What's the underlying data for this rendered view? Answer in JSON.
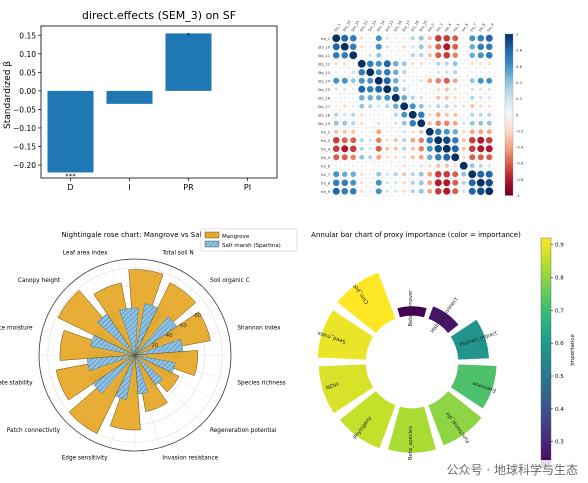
{
  "watermark": "公众号 · 地球科学与生态",
  "chart_data": [
    {
      "type": "bar",
      "title": "direct.effects (SEM_3) on SF",
      "ylabel": "Standardized β",
      "categories": [
        "D",
        "I",
        "PR",
        "PI"
      ],
      "values": [
        -0.22,
        -0.035,
        0.155,
        0.0
      ],
      "significance": [
        "***",
        "",
        "*",
        ""
      ],
      "ylim": [
        -0.235,
        0.175
      ],
      "yticks": [
        -0.2,
        -0.15,
        -0.1,
        -0.05,
        0.0,
        0.05,
        0.1,
        0.15
      ],
      "ytick_labels": [
        "−0.20",
        "−0.15",
        "−0.10",
        "−0.05",
        "0.00",
        "0.05",
        "0.10",
        "0.15"
      ],
      "bar_color": "#1f77b4"
    },
    {
      "type": "heatmap",
      "title": "",
      "labels": [
        "fre_1",
        "Sto_10",
        "Sto_11",
        "Sto_12",
        "Sto_13",
        "Sto_14",
        "Sto_15",
        "Sto_16",
        "Sto_17",
        "Sto_18",
        "Sto_19",
        "fre_2",
        "fre_3",
        "fre_4",
        "fre_5",
        "fre_6",
        "fre_7",
        "fre_8",
        "fre_9"
      ],
      "column_labels": [
        "fre_1",
        "Sto_10",
        "Sto_11",
        "Sto_12",
        "Sto_13",
        "Sto_14",
        "Sto_15",
        "Sto_16",
        "Sto_17",
        "Sto_18",
        "Sto_19",
        "fre_2",
        "fre_3",
        "fre_4",
        "fre_5",
        "fre_6",
        "fre_7",
        "fre_8",
        "fre_9"
      ],
      "colorbar_ticks": [
        1,
        0.8,
        0.6,
        0.4,
        0.2,
        0,
        -0.2,
        -0.4,
        -0.6,
        -0.8,
        -1
      ],
      "colormap": "RdBu",
      "corr_matrix": [
        [
          1,
          0.8,
          0.7,
          -0.2,
          0.1,
          0.6,
          0.2,
          0.1,
          -0.1,
          0.3,
          0.4,
          -0.3,
          -0.7,
          -0.7,
          -0.6,
          0.1,
          0.6,
          0.7,
          0.8
        ],
        [
          0.8,
          1,
          0.7,
          -0.2,
          0.1,
          0.6,
          0.2,
          0.1,
          -0.2,
          0.2,
          0.4,
          -0.3,
          -0.6,
          -0.8,
          -0.6,
          0.1,
          0.5,
          0.7,
          0.7
        ],
        [
          0.7,
          0.7,
          1,
          -0.1,
          0.2,
          0.4,
          0.1,
          0.1,
          -0.1,
          0.3,
          0.3,
          -0.3,
          -0.6,
          -0.7,
          -0.5,
          0.1,
          0.5,
          0.6,
          0.7
        ],
        [
          -0.2,
          -0.2,
          -0.1,
          1,
          0.7,
          0.6,
          0.8,
          0.5,
          0.4,
          -0.2,
          -0.2,
          0.1,
          0.3,
          0.3,
          0.4,
          -0.1,
          -0.2,
          -0.2,
          -0.2
        ],
        [
          0.1,
          0.1,
          0.2,
          0.7,
          1,
          0.6,
          0.7,
          0.5,
          0.3,
          -0.1,
          0.0,
          0.1,
          0.2,
          0.2,
          0.3,
          0.0,
          0.1,
          0.1,
          0.1
        ],
        [
          0.6,
          0.6,
          0.4,
          0.6,
          0.6,
          1,
          0.8,
          0.5,
          0.2,
          0.1,
          0.2,
          -0.4,
          -0.5,
          -0.6,
          -0.4,
          0.1,
          0.4,
          0.6,
          0.6
        ],
        [
          0.2,
          0.2,
          0.1,
          0.8,
          0.7,
          0.8,
          1,
          0.6,
          0.3,
          0.0,
          0.1,
          -0.1,
          -0.2,
          -0.3,
          -0.2,
          0.0,
          0.2,
          0.2,
          0.2
        ],
        [
          0.1,
          0.1,
          0.1,
          0.5,
          0.5,
          0.5,
          0.6,
          1,
          0.5,
          0.3,
          0.2,
          -0.1,
          -0.3,
          -0.3,
          -0.2,
          0.1,
          0.3,
          0.2,
          0.2
        ],
        [
          -0.1,
          -0.2,
          -0.1,
          0.4,
          0.3,
          0.2,
          0.3,
          0.5,
          1,
          0.6,
          0.4,
          0.2,
          0.3,
          0.3,
          0.2,
          -0.2,
          -0.3,
          -0.2,
          -0.2
        ],
        [
          0.3,
          0.2,
          0.3,
          -0.2,
          -0.1,
          0.1,
          0.0,
          0.3,
          0.6,
          1,
          0.7,
          -0.2,
          -0.4,
          -0.3,
          -0.3,
          0.1,
          0.3,
          0.3,
          0.3
        ],
        [
          0.4,
          0.4,
          0.3,
          -0.2,
          0.0,
          0.2,
          0.1,
          0.2,
          0.4,
          0.7,
          1,
          -0.3,
          -0.5,
          -0.5,
          -0.4,
          0.2,
          0.4,
          0.4,
          0.4
        ],
        [
          -0.3,
          -0.3,
          -0.3,
          0.1,
          0.1,
          -0.4,
          -0.1,
          -0.1,
          0.2,
          -0.2,
          -0.3,
          1,
          0.7,
          0.6,
          0.5,
          -0.2,
          -0.4,
          -0.4,
          -0.4
        ],
        [
          -0.7,
          -0.6,
          -0.6,
          0.3,
          0.2,
          -0.5,
          -0.2,
          -0.3,
          0.3,
          -0.4,
          -0.5,
          0.7,
          1,
          0.9,
          0.7,
          -0.3,
          -0.7,
          -0.8,
          -0.7
        ],
        [
          -0.7,
          -0.8,
          -0.7,
          0.3,
          0.2,
          -0.6,
          -0.3,
          -0.3,
          0.3,
          -0.3,
          -0.5,
          0.6,
          0.9,
          1,
          0.8,
          -0.3,
          -0.7,
          -0.8,
          -0.8
        ],
        [
          -0.6,
          -0.6,
          -0.5,
          0.4,
          0.3,
          -0.4,
          -0.2,
          -0.2,
          0.2,
          -0.3,
          -0.4,
          0.5,
          0.7,
          0.8,
          1,
          -0.2,
          -0.6,
          -0.6,
          -0.6
        ],
        [
          0.1,
          0.1,
          0.1,
          -0.1,
          0.0,
          0.1,
          0.0,
          0.1,
          -0.2,
          0.1,
          0.2,
          -0.2,
          -0.3,
          -0.3,
          -0.2,
          1,
          0.4,
          0.3,
          0.2
        ],
        [
          0.6,
          0.5,
          0.5,
          -0.2,
          0.1,
          0.4,
          0.2,
          0.3,
          -0.3,
          0.3,
          0.4,
          -0.4,
          -0.7,
          -0.7,
          -0.6,
          0.4,
          1,
          0.8,
          0.8
        ],
        [
          0.7,
          0.7,
          0.6,
          -0.2,
          0.1,
          0.6,
          0.2,
          0.2,
          -0.2,
          0.3,
          0.4,
          -0.4,
          -0.8,
          -0.8,
          -0.6,
          0.3,
          0.8,
          1,
          0.9
        ],
        [
          0.8,
          0.7,
          0.7,
          -0.2,
          0.1,
          0.6,
          0.2,
          0.2,
          -0.2,
          0.3,
          0.4,
          -0.4,
          -0.7,
          -0.8,
          -0.6,
          0.2,
          0.8,
          0.9,
          1
        ]
      ]
    },
    {
      "type": "bar",
      "projection": "polar",
      "title": "Nightingale rose chart: Mangrove vs Salt marsh",
      "categories": [
        "Total soil N",
        "Soil organic C",
        "Shannon index",
        "Species richness",
        "Regeneration potential",
        "Invasion resistance",
        "Edge sensitivity",
        "Patch connectivity",
        "Substrate stability",
        "Surface moisture",
        "Canopy height",
        "Leaf area index"
      ],
      "series": [
        {
          "name": "Mangrove",
          "color": "#e6a92a",
          "values": [
            98,
            92,
            88,
            72,
            56,
            66,
            86,
            100,
            92,
            86,
            98,
            84
          ]
        },
        {
          "name": "Salt marsh (Spartina)",
          "color": "#8fc1e3",
          "values": [
            60,
            58,
            55,
            47,
            42,
            45,
            52,
            58,
            55,
            52,
            57,
            54
          ]
        }
      ],
      "rticks": [
        20,
        40,
        60,
        80
      ],
      "rlim": [
        0,
        110
      ],
      "legend_position": "top-right"
    },
    {
      "type": "bar",
      "projection": "polar",
      "title": "Annular bar chart of proxy importance (color = importance)",
      "categories": [
        "Beta_turnover",
        "Habitat_connect",
        "Human_impact",
        "Evenness",
        "Functional_div",
        "Beta_species",
        "Phylogeny",
        "NDVI",
        "Seed_mass",
        "Clim_pot"
      ],
      "values": [
        0.19,
        0.26,
        0.58,
        0.72,
        0.8,
        0.83,
        0.86,
        0.88,
        0.9,
        0.92
      ],
      "colormap": "viridis",
      "colorbar_label": "Importance",
      "colorbar_ticks": [
        0.3,
        0.4,
        0.5,
        0.6,
        0.7,
        0.8,
        0.9
      ],
      "clim": [
        0.22,
        0.92
      ]
    }
  ]
}
